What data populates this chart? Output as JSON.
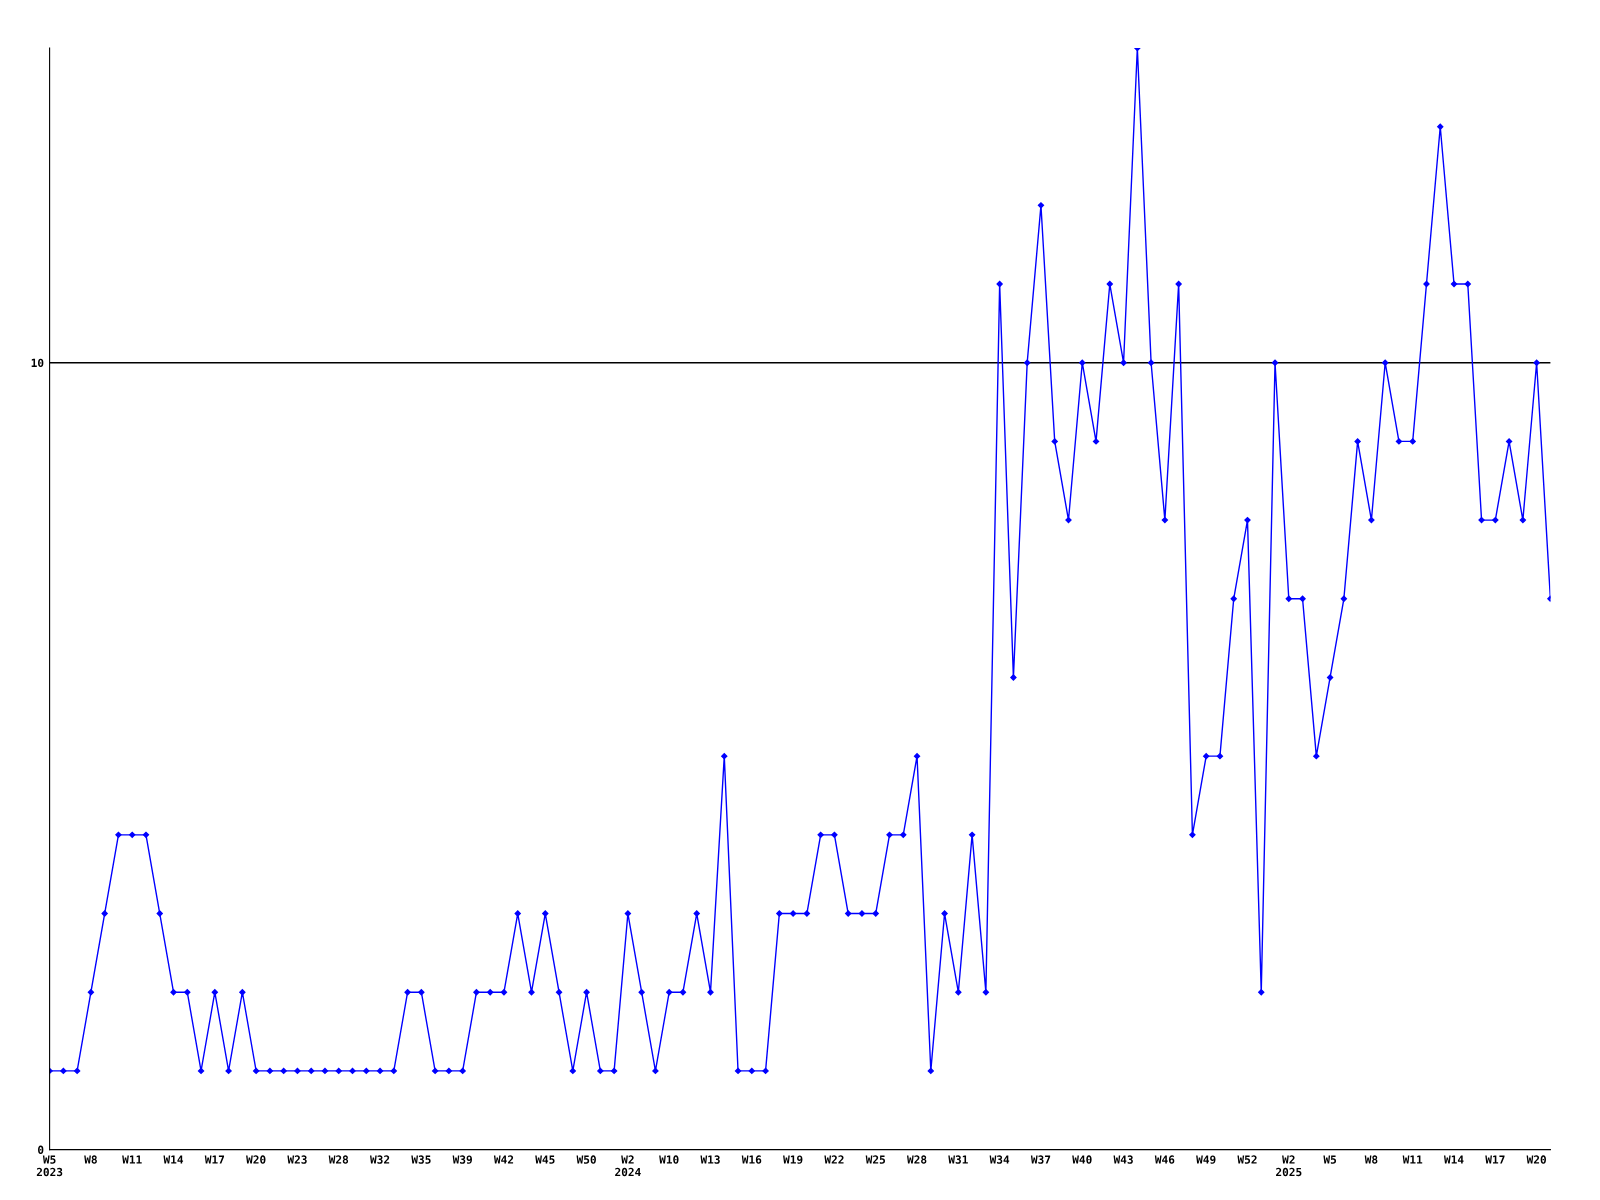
{
  "chart_data": {
    "type": "line",
    "categories": [
      "W5\n2023",
      null,
      null,
      "W8",
      null,
      null,
      "W11",
      null,
      null,
      "W14",
      null,
      null,
      "W17",
      null,
      null,
      "W20",
      null,
      null,
      "W23",
      null,
      null,
      "W28",
      null,
      null,
      "W32",
      null,
      null,
      "W35",
      null,
      null,
      "W39",
      null,
      null,
      "W42",
      null,
      null,
      "W45",
      null,
      null,
      "W50",
      null,
      null,
      "W2\n2024",
      null,
      null,
      "W10",
      null,
      null,
      "W13",
      null,
      null,
      "W16",
      null,
      null,
      "W19",
      null,
      null,
      "W22",
      null,
      null,
      "W25",
      null,
      null,
      "W28",
      null,
      null,
      "W31",
      null,
      null,
      "W34",
      null,
      null,
      "W37",
      null,
      null,
      "W40",
      null,
      null,
      "W43",
      null,
      null,
      "W46",
      null,
      null,
      "W49",
      null,
      null,
      "W52",
      null,
      null,
      "W2\n2025",
      null,
      null,
      "W5",
      null,
      null,
      "W8",
      null,
      null,
      "W11",
      null,
      null,
      "W14",
      null,
      null,
      "W17",
      null,
      null,
      "W20",
      null
    ],
    "series": [
      {
        "color": "#0000ff",
        "values": [
          1,
          1,
          1,
          2,
          3,
          4,
          4,
          4,
          3,
          2,
          2,
          1,
          2,
          1,
          2,
          1,
          1,
          1,
          1,
          1,
          1,
          1,
          1,
          1,
          1,
          1,
          2,
          2,
          1,
          1,
          1,
          2,
          2,
          2,
          3,
          2,
          3,
          2,
          1,
          2,
          1,
          1,
          3,
          2,
          1,
          2,
          2,
          3,
          2,
          5,
          1,
          1,
          1,
          3,
          3,
          3,
          4,
          4,
          3,
          3,
          3,
          4,
          4,
          5,
          1,
          3,
          2,
          4,
          2,
          11,
          6,
          10,
          12,
          9,
          8,
          10,
          9,
          11,
          10,
          14,
          10,
          8,
          11,
          4,
          5,
          5,
          7,
          8,
          2,
          10,
          7,
          7,
          5,
          6,
          7,
          9,
          8,
          10,
          9,
          9,
          11,
          13,
          11,
          11,
          8,
          8,
          9,
          8,
          10,
          7
        ]
      }
    ],
    "ylim": [
      0,
      14
    ],
    "yticks": [
      0,
      10
    ],
    "ref_lines": [
      {
        "axis": "y",
        "value": 10,
        "color": "#000000"
      }
    ],
    "marker": "diamond",
    "line_style": "solid",
    "grid": false,
    "legend": false
  }
}
